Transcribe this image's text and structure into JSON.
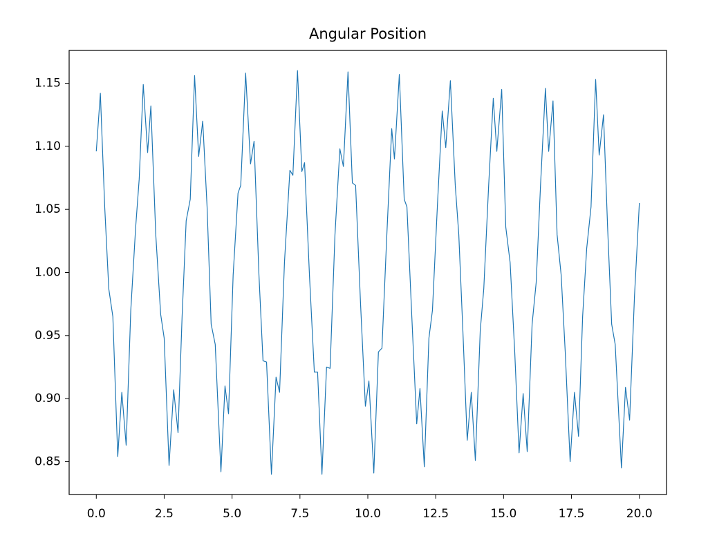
{
  "chart_data": {
    "type": "line",
    "title": "Angular Position",
    "x": [
      0,
      0.15,
      0.31,
      0.46,
      0.61,
      0.79,
      0.94,
      1.1,
      1.27,
      1.45,
      1.58,
      1.73,
      1.89,
      2.01,
      2.19,
      2.37,
      2.5,
      2.68,
      2.85,
      3.01,
      3.16,
      3.31,
      3.46,
      3.62,
      3.77,
      3.92,
      4.08,
      4.23,
      4.38,
      4.59,
      4.74,
      4.87,
      5.04,
      5.22,
      5.32,
      5.5,
      5.68,
      5.81,
      5.99,
      6.14,
      6.27,
      6.45,
      6.62,
      6.75,
      6.93,
      7.13,
      7.24,
      7.41,
      7.57,
      7.67,
      7.85,
      8.03,
      8.15,
      8.31,
      8.48,
      8.61,
      8.79,
      8.97,
      9.1,
      9.27,
      9.43,
      9.55,
      9.73,
      9.91,
      10.04,
      10.22,
      10.39,
      10.52,
      10.7,
      10.88,
      10.98,
      11.16,
      11.34,
      11.44,
      11.62,
      11.8,
      11.92,
      12.08,
      12.25,
      12.38,
      12.56,
      12.74,
      12.87,
      13.04,
      13.22,
      13.35,
      13.5,
      13.66,
      13.81,
      13.96,
      14.14,
      14.27,
      14.45,
      14.62,
      14.75,
      14.93,
      15.08,
      15.24,
      15.41,
      15.57,
      15.72,
      15.87,
      16.05,
      16.2,
      16.36,
      16.54,
      16.66,
      16.82,
      16.97,
      17.12,
      17.27,
      17.45,
      17.61,
      17.76,
      17.91,
      18.06,
      18.22,
      18.39,
      18.52,
      18.68,
      18.83,
      18.98,
      19.11,
      19.34,
      19.49,
      19.64,
      19.82,
      20
    ],
    "series": [
      {
        "color": "#1f77b4",
        "values": [
          1.096,
          1.142,
          1.052,
          0.987,
          0.965,
          0.854,
          0.905,
          0.863,
          0.97,
          1.036,
          1.074,
          1.149,
          1.095,
          1.132,
          1.03,
          0.967,
          0.948,
          0.847,
          0.907,
          0.873,
          0.965,
          1.041,
          1.058,
          1.156,
          1.092,
          1.12,
          1.052,
          0.959,
          0.943,
          0.842,
          0.91,
          0.888,
          0.998,
          1.063,
          1.069,
          1.158,
          1.086,
          1.104,
          0.998,
          0.93,
          0.929,
          0.84,
          0.917,
          0.905,
          1.008,
          1.081,
          1.077,
          1.16,
          1.08,
          1.087,
          0.998,
          0.921,
          0.921,
          0.84,
          0.925,
          0.924,
          1.03,
          1.098,
          1.084,
          1.159,
          1.071,
          1.069,
          0.976,
          0.894,
          0.914,
          0.841,
          0.937,
          0.94,
          1.03,
          1.114,
          1.09,
          1.157,
          1.058,
          1.052,
          0.965,
          0.88,
          0.908,
          0.846,
          0.948,
          0.97,
          1.052,
          1.128,
          1.099,
          1.152,
          1.069,
          1.03,
          0.954,
          0.867,
          0.905,
          0.851,
          0.954,
          0.987,
          1.069,
          1.138,
          1.096,
          1.145,
          1.036,
          1.008,
          0.937,
          0.857,
          0.904,
          0.858,
          0.959,
          0.992,
          1.069,
          1.146,
          1.096,
          1.136,
          1.03,
          0.998,
          0.937,
          0.85,
          0.905,
          0.87,
          0.965,
          1.019,
          1.052,
          1.153,
          1.093,
          1.125,
          1.036,
          0.959,
          0.943,
          0.845,
          0.909,
          0.883,
          0.981,
          1.055
        ]
      }
    ],
    "xlim": [
      -1,
      21
    ],
    "ylim": [
      0.824,
      1.176
    ],
    "xticks": [
      {
        "value": 0,
        "label": "0.0"
      },
      {
        "value": 2.5,
        "label": "2.5"
      },
      {
        "value": 5,
        "label": "5.0"
      },
      {
        "value": 7.5,
        "label": "7.5"
      },
      {
        "value": 10,
        "label": "10.0"
      },
      {
        "value": 12.5,
        "label": "12.5"
      },
      {
        "value": 15,
        "label": "15.0"
      },
      {
        "value": 17.5,
        "label": "17.5"
      },
      {
        "value": 20,
        "label": "20.0"
      }
    ],
    "yticks": [
      {
        "value": 0.85,
        "label": "0.85"
      },
      {
        "value": 0.9,
        "label": "0.90"
      },
      {
        "value": 0.95,
        "label": "0.95"
      },
      {
        "value": 1,
        "label": "1.00"
      },
      {
        "value": 1.05,
        "label": "1.05"
      },
      {
        "value": 1.1,
        "label": "1.10"
      },
      {
        "value": 1.15,
        "label": "1.15"
      }
    ]
  }
}
